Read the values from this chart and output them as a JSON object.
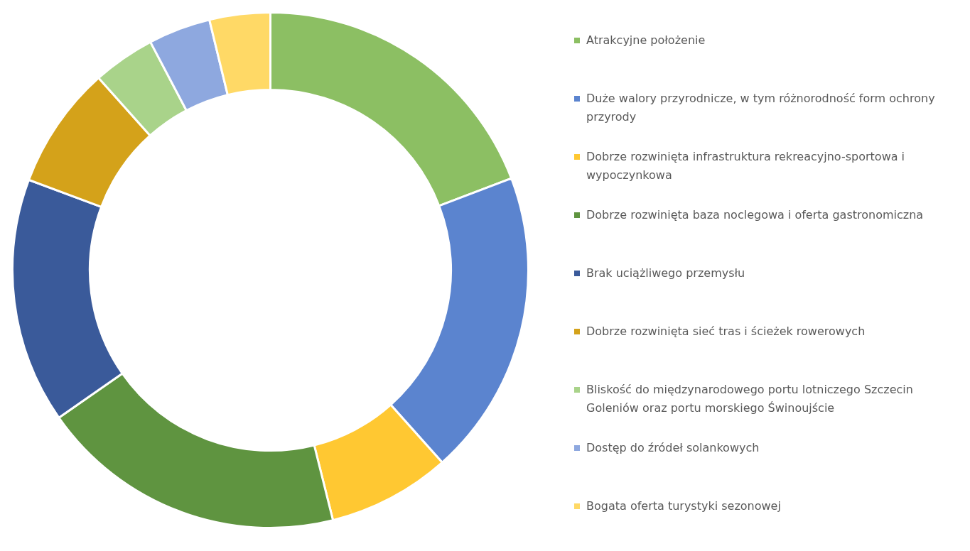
{
  "chart_data": {
    "type": "donut",
    "legend": "right",
    "categories": [
      "Atrakcyjne położenie",
      "Duże walory przyrodnicze, w tym różnorodność form ochrony przyrody",
      "Dobrze rozwinięta infrastruktura rekreacyjno-sportowa i wypoczynkowa",
      "Dobrze rozwinięta baza noclegowa i oferta gastronomiczna",
      "Brak uciążliwego przemysłu",
      "Dobrze rozwinięta sieć tras i ścieżek rowerowych",
      "Bliskość do międzynarodowego portu lotniczego Szczecin Goleniów oraz portu morskiego Świnoujście",
      "Dostęp do źródeł solankowych",
      "Bogata oferta turystyki sezonowej"
    ],
    "values": [
      19.2,
      19.2,
      7.7,
      19.2,
      15.4,
      7.7,
      3.9,
      3.9,
      3.8
    ],
    "colors": [
      "#8cbf63",
      "#5b84cf",
      "#ffc832",
      "#5f9440",
      "#3a5a9a",
      "#d4a21a",
      "#a9d38a",
      "#8ea8df",
      "#ffd966"
    ]
  }
}
